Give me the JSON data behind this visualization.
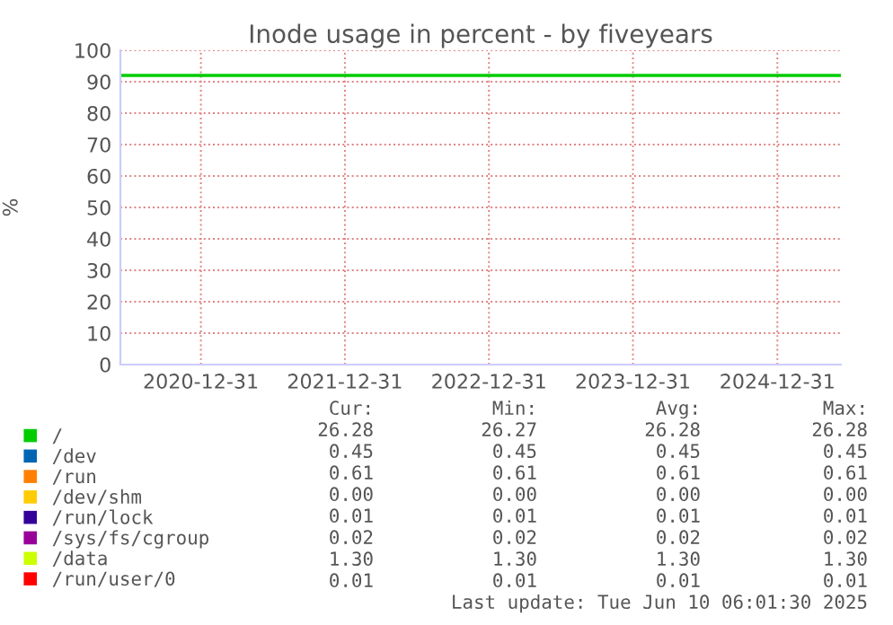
{
  "chart_data": {
    "type": "line",
    "title": "Inode usage in percent - by fiveyears",
    "ylabel": "%",
    "x": [
      "2020-06-10",
      "2025-06-10"
    ],
    "xlim": [
      "2020-06-10",
      "2025-06-10"
    ],
    "xticks": [
      {
        "value": "2020-12-31",
        "label": "2020-12-31"
      },
      {
        "value": "2021-12-31",
        "label": "2021-12-31"
      },
      {
        "value": "2022-12-31",
        "label": "2022-12-31"
      },
      {
        "value": "2023-12-31",
        "label": "2023-12-31"
      },
      {
        "value": "2024-12-31",
        "label": "2024-12-31"
      }
    ],
    "ylim": [
      0,
      100
    ],
    "yticks": [
      0,
      10,
      20,
      30,
      40,
      50,
      60,
      70,
      80,
      90,
      100
    ],
    "grid": true,
    "legend": "bottom left",
    "marker": "none",
    "line_style": "solid",
    "series": [
      {
        "name": "/",
        "color": "#00cc00",
        "values": [
          92,
          92
        ]
      },
      {
        "name": "/dev",
        "color": "#0066b3",
        "values": [
          null,
          null
        ]
      },
      {
        "name": "/run",
        "color": "#ff8000",
        "values": [
          null,
          null
        ]
      },
      {
        "name": "/dev/shm",
        "color": "#ffcc00",
        "values": [
          null,
          null
        ]
      },
      {
        "name": "/run/lock",
        "color": "#330099",
        "values": [
          null,
          null
        ]
      },
      {
        "name": "/sys/fs/cgroup",
        "color": "#990099",
        "values": [
          null,
          null
        ]
      },
      {
        "name": "/data",
        "color": "#ccff00",
        "values": [
          null,
          null
        ]
      },
      {
        "name": "/run/user/0",
        "color": "#ff0000",
        "values": [
          null,
          null
        ]
      }
    ],
    "annotations": [
      "Cur:",
      "Min:",
      "Avg:",
      "Max:",
      "26.28",
      "26.27",
      "26.28",
      "26.28",
      "0.45",
      "0.45",
      "0.45",
      "0.45",
      "0.61",
      "0.61",
      "0.61",
      "0.61",
      "0.00",
      "0.00",
      "0.00",
      "0.00",
      "0.01",
      "0.01",
      "0.01",
      "0.01",
      "0.02",
      "0.02",
      "0.02",
      "0.02",
      "1.30",
      "1.30",
      "1.30",
      "1.30",
      "0.01",
      "0.01",
      "0.01",
      "0.01",
      "Last update: Tue Jun 10 06:01:30 2025"
    ]
  }
}
